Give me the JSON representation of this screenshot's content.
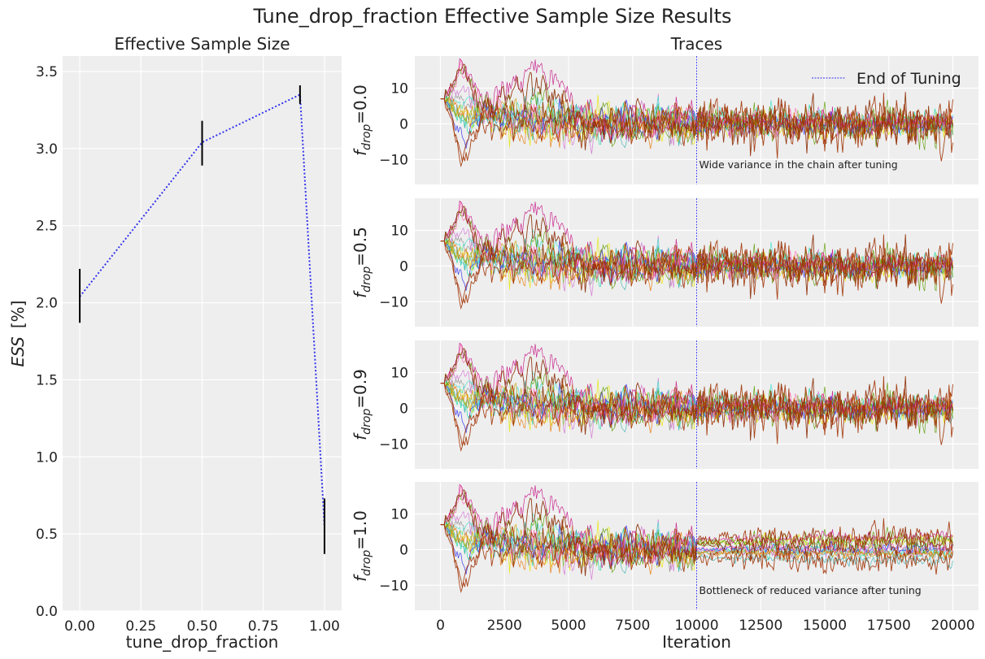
{
  "figure": {
    "title": "Tune_drop_fraction Effective Sample Size Results"
  },
  "chart_data": [
    {
      "type": "line",
      "title": "Effective Sample Size",
      "xlabel": "tune_drop_fraction",
      "ylabel_main": "ESS",
      "ylabel_unit": "[%]",
      "xlim": [
        -0.07,
        1.07
      ],
      "ylim": [
        0.0,
        3.6
      ],
      "xticks": [
        0.0,
        0.25,
        0.5,
        0.75,
        1.0
      ],
      "xtick_labels": [
        "0.00",
        "0.25",
        "0.50",
        "0.75",
        "1.00"
      ],
      "yticks": [
        0.0,
        0.5,
        1.0,
        1.5,
        2.0,
        2.5,
        3.0,
        3.5
      ],
      "ytick_labels": [
        "0.0",
        "0.5",
        "1.0",
        "1.5",
        "2.0",
        "2.5",
        "3.0",
        "3.5"
      ],
      "grid": true,
      "line_color": "#3333ee",
      "errorbar_color": "#000000",
      "series": [
        {
          "x": [
            0.0,
            0.5,
            0.9,
            1.0
          ],
          "values": [
            2.04,
            3.04,
            3.35,
            0.55
          ],
          "err_low": [
            1.87,
            2.89,
            3.29,
            0.37
          ],
          "err_high": [
            2.22,
            3.18,
            3.41,
            0.73
          ]
        }
      ]
    },
    {
      "type": "line",
      "title": "Traces",
      "xlabel": "Iteration",
      "xlim": [
        -1000,
        21000
      ],
      "ylim": [
        -17,
        19
      ],
      "xticks": [
        0,
        2500,
        5000,
        7500,
        10000,
        12500,
        15000,
        17500,
        20000
      ],
      "xtick_labels": [
        "0",
        "2500",
        "5000",
        "7500",
        "10000",
        "12500",
        "15000",
        "17500",
        "20000"
      ],
      "yticks": [
        -10,
        0,
        10
      ],
      "ytick_labels": [
        "−10",
        "0",
        "10"
      ],
      "grid": true,
      "tuning_end": 10000,
      "legend": {
        "label": "End of Tuning",
        "position": "top-right",
        "color": "#3333ee"
      },
      "panels": [
        {
          "label_base": "f",
          "label_sub": "drop",
          "label_value": "=0.0",
          "annotation": "Wide variance in the chain after tuning",
          "mode": "wide"
        },
        {
          "label_base": "f",
          "label_sub": "drop",
          "label_value": "=0.5",
          "annotation": "",
          "mode": "wide"
        },
        {
          "label_base": "f",
          "label_sub": "drop",
          "label_value": "=0.9",
          "annotation": "",
          "mode": "wide"
        },
        {
          "label_base": "f",
          "label_sub": "drop",
          "label_value": "=1.0",
          "annotation": "Bottleneck of reduced variance after tuning",
          "mode": "bottleneck"
        }
      ],
      "chain_colors": [
        "#a13203",
        "#a13203",
        "#c71585",
        "#5c9b00",
        "#e87600",
        "#2a2aef",
        "#18d8a8",
        "#e8e800",
        "#909090",
        "#d070d0",
        "#3cb0b0",
        "#7fbf3f",
        "#8b2a00",
        "#ff69b4",
        "#40e0d0",
        "#c8a000"
      ]
    }
  ]
}
